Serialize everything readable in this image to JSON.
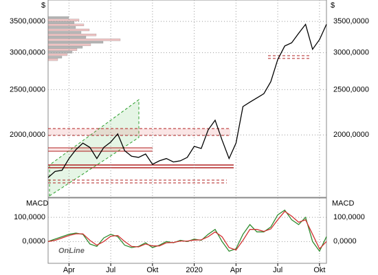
{
  "chart_data": [
    {
      "type": "line",
      "y_label": "$",
      "log_scale": true,
      "grid": true,
      "ylim": [
        1470,
        3890
      ],
      "yticks": [
        {
          "value": 2000,
          "label": "2000,0000"
        },
        {
          "value": 2500,
          "label": "2500,0000"
        },
        {
          "value": 3000,
          "label": "3000,0000"
        },
        {
          "value": 3500,
          "label": "3500,0000"
        }
      ],
      "categories": [
        null,
        null,
        null,
        "Apr",
        null,
        null,
        null,
        null,
        null,
        "Jul",
        null,
        null,
        null,
        null,
        null,
        "Okt",
        null,
        null,
        null,
        null,
        null,
        "2020",
        null,
        null,
        null,
        null,
        null,
        "Apr",
        null,
        null,
        null,
        null,
        null,
        "Jul",
        null,
        null,
        null,
        null,
        null,
        "Okt",
        null
      ],
      "series": [
        {
          "color": "#000000",
          "values": [
            1620,
            1670,
            1680,
            1780,
            1860,
            1920,
            1880,
            1780,
            1880,
            1930,
            2010,
            1850,
            1800,
            1790,
            1820,
            1730,
            1760,
            1780,
            1750,
            1760,
            1790,
            1890,
            1870,
            2050,
            2150,
            1950,
            1780,
            1920,
            2300,
            2350,
            2400,
            2450,
            2600,
            2900,
            3100,
            3150,
            3300,
            3450,
            3050,
            3200,
            3450
          ]
        }
      ]
    },
    {
      "type": "line",
      "title": "MACD",
      "annotation": "OnLine",
      "grid": true,
      "ylim": [
        -90,
        180
      ],
      "yticks": [
        {
          "value": 0,
          "label": "0,0000"
        },
        {
          "value": 100,
          "label": "100,0000"
        }
      ],
      "series": [
        {
          "color": "#2e8b2e",
          "values": [
            0,
            10,
            20,
            30,
            35,
            30,
            -10,
            -20,
            15,
            30,
            20,
            -15,
            -25,
            -20,
            -5,
            -25,
            -15,
            0,
            -5,
            5,
            0,
            10,
            5,
            30,
            50,
            0,
            -40,
            -30,
            30,
            70,
            40,
            40,
            60,
            110,
            130,
            90,
            70,
            100,
            0,
            -40,
            20
          ]
        },
        {
          "color": "#d03030",
          "values": [
            0,
            5,
            15,
            25,
            32,
            32,
            5,
            -15,
            0,
            22,
            25,
            0,
            -20,
            -22,
            -10,
            -18,
            -18,
            -5,
            -4,
            2,
            2,
            6,
            7,
            20,
            40,
            20,
            -25,
            -35,
            5,
            50,
            50,
            42,
            52,
            90,
            125,
            105,
            80,
            90,
            30,
            -30,
            0
          ]
        }
      ]
    }
  ]
}
